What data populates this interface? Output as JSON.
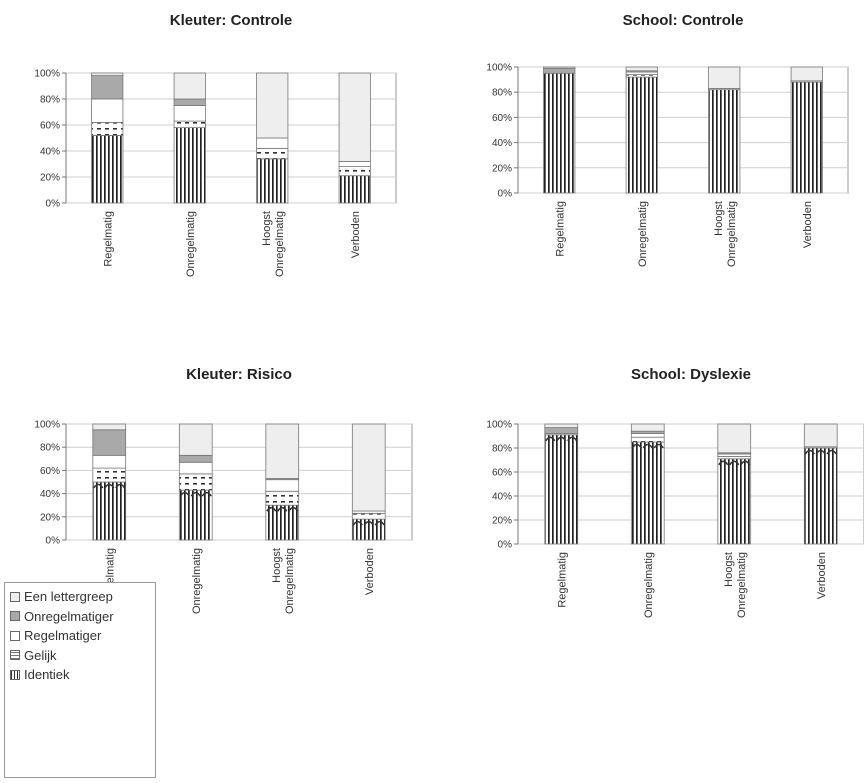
{
  "colors": {
    "identiek": "#ffffff",
    "gelijk": "#ffffff",
    "regelmatiger": "#ffffff",
    "onregelmatiger": "#a9a9a9",
    "een_lettergreep": "#eeeeee",
    "stripe": "#222222",
    "grid": "#cfcfcf",
    "plot_border": "#9a9a9a"
  },
  "legend": {
    "items": [
      {
        "label": "Een lettergreep",
        "key": "een_lettergreep"
      },
      {
        "label": "Onregelmatiger",
        "key": "onregelmatiger"
      },
      {
        "label": "Regelmatiger",
        "key": "regelmatiger"
      },
      {
        "label": "Gelijk",
        "key": "gelijk"
      },
      {
        "label": "Identiek",
        "key": "identiek"
      }
    ]
  },
  "chart_data": [
    {
      "type": "bar",
      "stacked": true,
      "title": "Kleuter: Controle",
      "categories": [
        "Regelmatig",
        "Onregelmatig",
        "Hoogst\nOnregelmatig",
        "Verboden"
      ],
      "yticks": [
        "0%",
        "20%",
        "40%",
        "60%",
        "80%",
        "100%"
      ],
      "ylim": [
        0,
        100
      ],
      "series": [
        {
          "name": "Identiek",
          "key": "identiek",
          "values": [
            52,
            58,
            34,
            21
          ]
        },
        {
          "name": "Gelijk",
          "key": "gelijk",
          "values": [
            10,
            5,
            8,
            7
          ]
        },
        {
          "name": "Regelmatiger",
          "key": "regelmatiger",
          "values": [
            18,
            12,
            8,
            4
          ]
        },
        {
          "name": "Onregelmatiger",
          "key": "onregelmatiger",
          "values": [
            18,
            5,
            0,
            0
          ]
        },
        {
          "name": "Een lettergreep",
          "key": "een_lettergreep",
          "values": [
            2,
            20,
            50,
            68
          ]
        }
      ]
    },
    {
      "type": "bar",
      "stacked": true,
      "title": "School: Controle",
      "categories": [
        "Regelmatig",
        "Onregelmatig",
        "Hoogst\nOnregelmatig",
        "Verboden"
      ],
      "yticks": [
        "0%",
        "20%",
        "40%",
        "60%",
        "80%",
        "100%"
      ],
      "ylim": [
        0,
        100
      ],
      "series": [
        {
          "name": "Identiek",
          "key": "identiek",
          "values": [
            95,
            92,
            82,
            88
          ]
        },
        {
          "name": "Gelijk",
          "key": "gelijk",
          "values": [
            0,
            2,
            0,
            0
          ]
        },
        {
          "name": "Regelmatiger",
          "key": "regelmatiger",
          "values": [
            0,
            2,
            1,
            1
          ]
        },
        {
          "name": "Onregelmatiger",
          "key": "onregelmatiger",
          "values": [
            4,
            1,
            0,
            0
          ]
        },
        {
          "name": "Een lettergreep",
          "key": "een_lettergreep",
          "values": [
            1,
            3,
            17,
            11
          ]
        }
      ]
    },
    {
      "type": "bar",
      "stacked": true,
      "title": "Kleuter: Risico",
      "categories": [
        "Regelmatig",
        "Onregelmatig",
        "Hoogst\nOnregelmatig",
        "Verboden"
      ],
      "yticks": [
        "0%",
        "20%",
        "40%",
        "60%",
        "80%",
        "100%"
      ],
      "ylim": [
        0,
        100
      ],
      "series": [
        {
          "name": "Identiek",
          "key": "identiek",
          "values": [
            50,
            43,
            30,
            18
          ]
        },
        {
          "name": "Gelijk",
          "key": "gelijk",
          "values": [
            12,
            14,
            12,
            5
          ]
        },
        {
          "name": "Regelmatiger",
          "key": "regelmatiger",
          "values": [
            11,
            10,
            10,
            2
          ]
        },
        {
          "name": "Onregelmatiger",
          "key": "onregelmatiger",
          "values": [
            22,
            6,
            1,
            0
          ]
        },
        {
          "name": "Een lettergreep",
          "key": "een_lettergreep",
          "values": [
            5,
            27,
            47,
            75
          ]
        }
      ]
    },
    {
      "type": "bar",
      "stacked": true,
      "title": "School: Dyslexie",
      "categories": [
        "Regelmatig",
        "Onregelmatig",
        "Hoogst\nOnregelmatig",
        "Verboden"
      ],
      "yticks": [
        "0%",
        "20%",
        "40%",
        "60%",
        "80%",
        "100%"
      ],
      "ylim": [
        0,
        100
      ],
      "series": [
        {
          "name": "Identiek",
          "key": "identiek",
          "values": [
            91,
            85,
            71,
            80
          ]
        },
        {
          "name": "Gelijk",
          "key": "gelijk",
          "values": [
            0,
            4,
            2,
            0
          ]
        },
        {
          "name": "Regelmatiger",
          "key": "regelmatiger",
          "values": [
            1,
            3,
            2,
            1
          ]
        },
        {
          "name": "Onregelmatiger",
          "key": "onregelmatiger",
          "values": [
            5,
            2,
            1,
            0
          ]
        },
        {
          "name": "Een lettergreep",
          "key": "een_lettergreep",
          "values": [
            3,
            6,
            24,
            19
          ]
        }
      ]
    }
  ]
}
